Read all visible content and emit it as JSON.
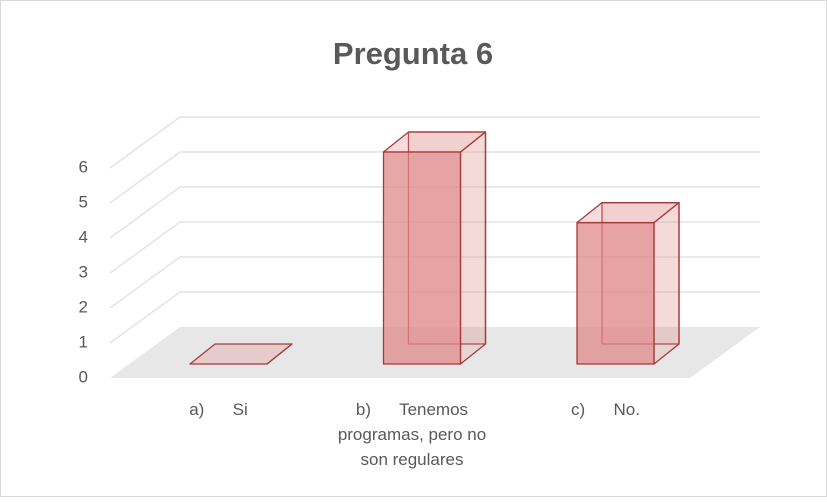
{
  "chart_data": {
    "type": "bar3d",
    "title": "Pregunta 6",
    "categories": [
      "a)      Si",
      "b)      Tenemos programas, pero no son regulares",
      "c)      No."
    ],
    "values": [
      0,
      6,
      4
    ],
    "color": "#e08a8a",
    "ylim": [
      0,
      6
    ],
    "yticks": [
      0,
      1,
      2,
      3,
      4,
      5,
      6
    ],
    "grid": true
  }
}
